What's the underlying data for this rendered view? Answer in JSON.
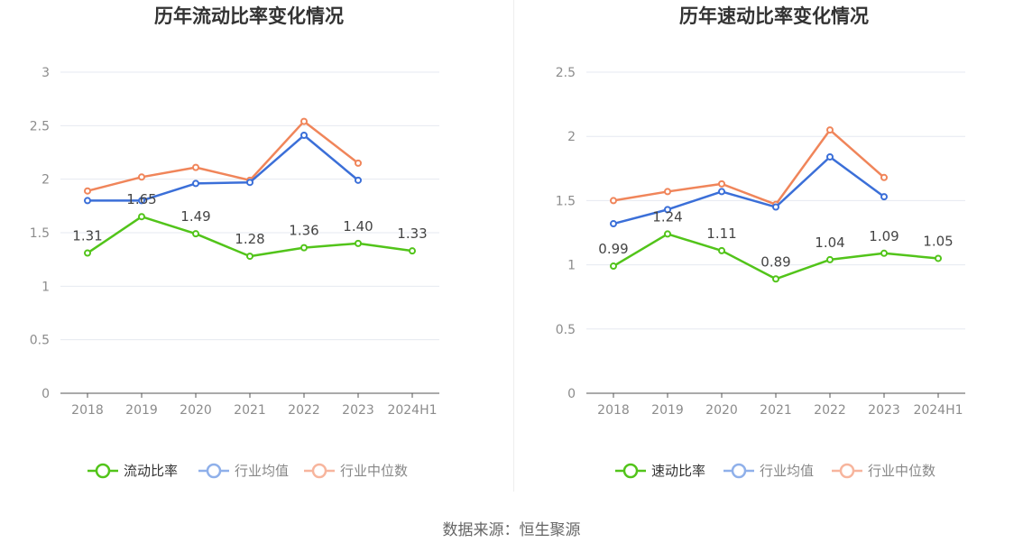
{
  "chart_data": [
    {
      "type": "line",
      "title": "历年流动比率变化情况",
      "categories": [
        "2018",
        "2019",
        "2020",
        "2021",
        "2022",
        "2023",
        "2024H1"
      ],
      "ylim": [
        0,
        3
      ],
      "yticks": [
        "0",
        "0.5",
        "1",
        "1.5",
        "2",
        "2.5",
        "3"
      ],
      "grid": true,
      "legend_position": "bottom",
      "series": [
        {
          "name": "流动比率",
          "color": "#52c41a",
          "labeled": true,
          "values": [
            1.31,
            1.65,
            1.49,
            1.28,
            1.36,
            1.4,
            1.33
          ],
          "labels": [
            "1.31",
            "1.65",
            "1.49",
            "1.28",
            "1.36",
            "1.40",
            "1.33"
          ]
        },
        {
          "name": "行业均值",
          "color": "#3b6fd8",
          "legend_color": "#8fb0ea",
          "labeled": false,
          "values": [
            1.8,
            1.8,
            1.96,
            1.97,
            2.41,
            1.99,
            null
          ]
        },
        {
          "name": "行业中位数",
          "color": "#f0855a",
          "legend_color": "#f7b59d",
          "labeled": false,
          "values": [
            1.89,
            2.02,
            2.11,
            1.99,
            2.54,
            2.15,
            null
          ]
        }
      ]
    },
    {
      "type": "line",
      "title": "历年速动比率变化情况",
      "categories": [
        "2018",
        "2019",
        "2020",
        "2021",
        "2022",
        "2023",
        "2024H1"
      ],
      "ylim": [
        0,
        2.5
      ],
      "yticks": [
        "0",
        "0.5",
        "1",
        "1.5",
        "2",
        "2.5"
      ],
      "grid": true,
      "legend_position": "bottom",
      "series": [
        {
          "name": "速动比率",
          "color": "#52c41a",
          "labeled": true,
          "values": [
            0.99,
            1.24,
            1.11,
            0.89,
            1.04,
            1.09,
            1.05
          ],
          "labels": [
            "0.99",
            "1.24",
            "1.11",
            "0.89",
            "1.04",
            "1.09",
            "1.05"
          ]
        },
        {
          "name": "行业均值",
          "color": "#3b6fd8",
          "legend_color": "#8fb0ea",
          "labeled": false,
          "values": [
            1.32,
            1.43,
            1.57,
            1.45,
            1.84,
            1.53,
            null
          ]
        },
        {
          "name": "行业中位数",
          "color": "#f0855a",
          "legend_color": "#f7b59d",
          "labeled": false,
          "values": [
            1.5,
            1.57,
            1.63,
            1.47,
            2.05,
            1.68,
            null
          ]
        }
      ]
    }
  ],
  "source": "数据来源：恒生聚源"
}
